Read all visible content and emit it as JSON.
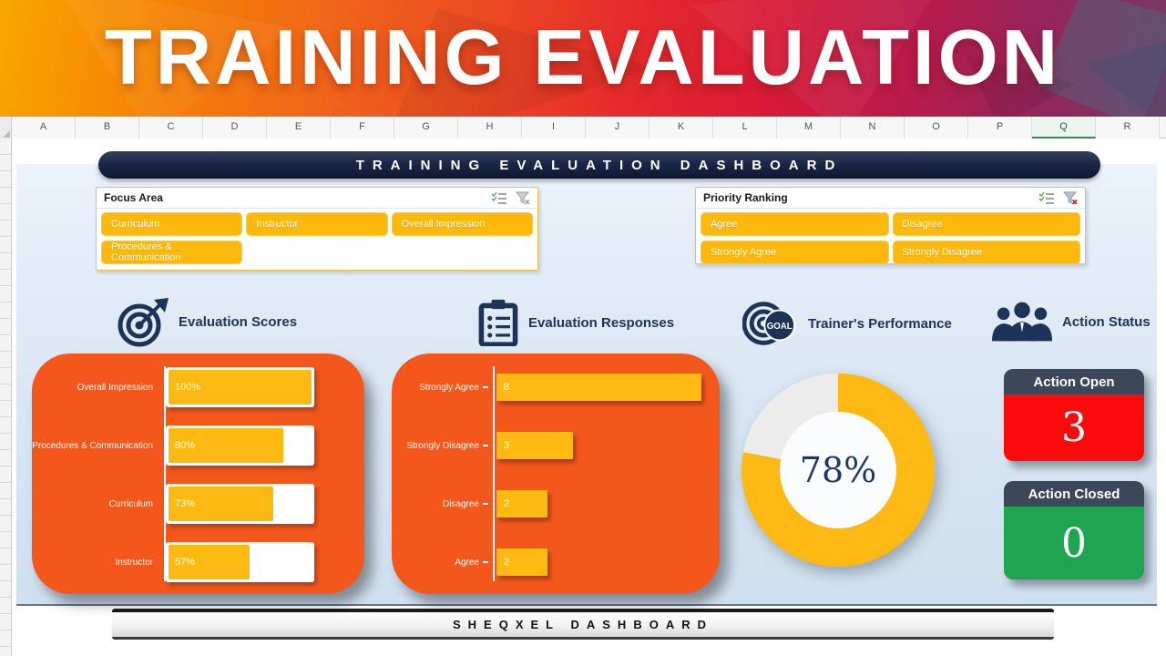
{
  "banner": {
    "title": "TRAINING EVALUATION"
  },
  "sheet": {
    "columns": [
      "A",
      "B",
      "C",
      "D",
      "E",
      "F",
      "G",
      "H",
      "I",
      "J",
      "K",
      "L",
      "M",
      "N",
      "O",
      "P",
      "Q",
      "R"
    ],
    "selected_column": "Q"
  },
  "titlebar": {
    "text": "TRAINING EVALUATION DASHBOARD"
  },
  "slicers": {
    "focus_area": {
      "title": "Focus Area",
      "buttons": [
        "Curriculum",
        "Instructor",
        "Overall Impression",
        "Procedures & Communication"
      ],
      "icons": [
        "multi-select",
        "clear-filter"
      ]
    },
    "priority_ranking": {
      "title": "Priority Ranking",
      "buttons": [
        "Agree",
        "Disagree",
        "Strongly Agree",
        "Strongly Disagree"
      ],
      "icons": [
        "multi-select",
        "clear-filter"
      ]
    }
  },
  "sections": {
    "scores_title": "Evaluation Scores",
    "responses_title": "Evaluation Responses",
    "performance_title": "Trainer's Performance",
    "actions_title": "Action Status"
  },
  "action_cards": [
    {
      "label": "Action Open",
      "value": "3",
      "color": "#FA0A0A"
    },
    {
      "label": "Action Closed",
      "value": "0",
      "color": "#1FA451"
    }
  ],
  "footer": {
    "text": "SHEQXEL DASHBOARD"
  },
  "colors": {
    "accent_yellow": "#FCB912",
    "panel_orange": "#F3571C",
    "navy": "#1F3455",
    "action_open_red": "#FA0A0A",
    "action_closed_green": "#1FA451"
  },
  "chart_data": [
    {
      "type": "bar",
      "orientation": "horizontal",
      "title": "Evaluation Scores",
      "categories": [
        "Overall Impression",
        "Procedures & Communication",
        "Curriculum",
        "Instructor"
      ],
      "values": [
        100,
        80,
        73,
        57
      ],
      "unit": "%",
      "xlim": [
        0,
        100
      ],
      "bar_color": "#FCB912",
      "track_color": "#FFFFFF",
      "background": "#F3571C"
    },
    {
      "type": "bar",
      "orientation": "horizontal",
      "title": "Evaluation Responses",
      "categories": [
        "Strongly Agree",
        "Strongly Disagree",
        "Disagree",
        "Agree"
      ],
      "values": [
        8,
        3,
        2,
        2
      ],
      "xlim": [
        0,
        8
      ],
      "bar_color": "#FCB912",
      "background": "#F3571C"
    },
    {
      "type": "donut",
      "title": "Trainer's Performance",
      "value": 78,
      "unit": "%",
      "center_label": "78%",
      "filled_color": "#FCB913",
      "empty_color": "#ECECEC"
    }
  ]
}
